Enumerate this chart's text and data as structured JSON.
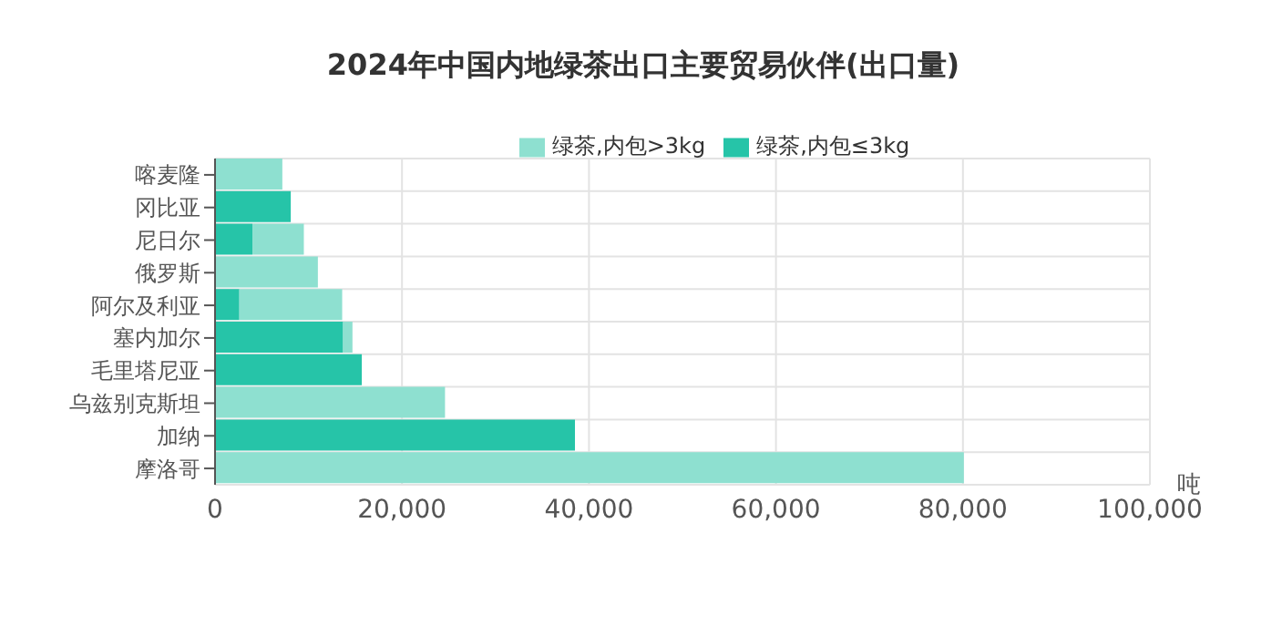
{
  "chart_data": {
    "type": "bar",
    "orientation": "horizontal",
    "stacked": true,
    "title": "2024年中国内地绿茶出口主要贸易伙伴(出口量)",
    "xlabel": "吨",
    "categories": [
      "喀麦隆",
      "冈比亚",
      "尼日尔",
      "俄罗斯",
      "阿尔及利亚",
      "塞内加尔",
      "毛里塔尼亚",
      "乌兹别克斯坦",
      "加纳",
      "摩洛哥"
    ],
    "series": [
      {
        "name": "绿茶,内包≤3kg",
        "color": "#26c4a8",
        "values": [
          null,
          8100,
          4000,
          null,
          2600,
          13700,
          15700,
          null,
          38500,
          null
        ]
      },
      {
        "name": "绿茶,内包>3kg",
        "color": "#8ee0d0",
        "values": [
          7200,
          null,
          5500,
          11000,
          11000,
          1000,
          null,
          24600,
          null,
          80100
        ]
      }
    ],
    "xlim": [
      0,
      100000
    ],
    "xticks": [
      0,
      {
        "value": 20000,
        "label": "20,000"
      },
      {
        "value": 40000,
        "label": "40,000"
      },
      {
        "value": 60000,
        "label": "60,000"
      },
      {
        "value": 80000,
        "label": "80,000"
      },
      {
        "value": 100000,
        "label": "100,000"
      }
    ],
    "grid": true,
    "legend": "top right"
  }
}
